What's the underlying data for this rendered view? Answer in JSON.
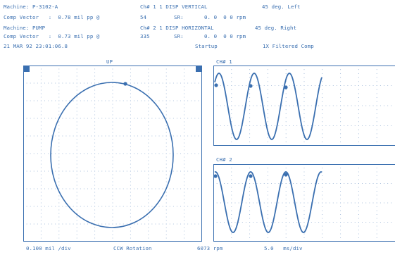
{
  "header": {
    "machine1": "Machine: P-3102-A",
    "comp1": "Comp Vector   :  0.78 mil pp @",
    "comp1_phase": "54",
    "sr1": "SR:",
    "sr1_val": "0. 0  0 0 rpm",
    "machine2": "Machine: PUMP",
    "comp2": "Comp Vector   :  0.73 mil pp @",
    "comp2_phase": "335",
    "sr2": "SR:",
    "sr2_val": "0. 0  0 0 rpm",
    "datetime": "21 MAR 92 23:01:06.8",
    "ch1_desc": "Ch# 1 1 DISP VERTICAL",
    "ch1_angle": "45 deg. Left",
    "ch2_desc": "Ch# 2 1 DISP HORIZONTAL",
    "ch2_angle": "45 deg. Right",
    "startup": "Startup",
    "filter": "1X Filtered Comp"
  },
  "orbit": {
    "up_label": "UP"
  },
  "waveforms": {
    "ch1_label": "CH# 1",
    "ch2_label": "CH# 2"
  },
  "footer": {
    "scale": "0.100 mil /div",
    "rotation": "CCW Rotation",
    "speed": "6073 rpm",
    "timebase": "5.0   ms/div"
  },
  "colors": {
    "ink": "#3a6fb0",
    "grid": "#9bb5d6",
    "background": "#ffffff"
  }
}
